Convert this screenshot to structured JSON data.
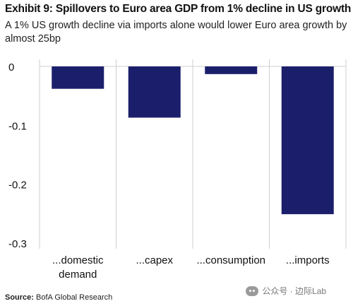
{
  "header": {
    "title": "Exhibit 9: Spillovers to Euro area GDP from 1% decline in US growth",
    "subtitle": "A 1% US growth decline via imports alone would lower Euro area growth by almost 25bp"
  },
  "footer": {
    "source_label": "Source:",
    "source_text": "BofA Global Research",
    "watermark": "公众号 · 边际Lab"
  },
  "colors": {
    "bar": "#1b1f6b",
    "axis": "#cfcfcf",
    "text": "#111111"
  },
  "chart_data": {
    "type": "bar",
    "categories": [
      [
        "...domestic",
        "demand"
      ],
      [
        "...capex"
      ],
      [
        "...consumption"
      ],
      [
        "...imports"
      ]
    ],
    "values": [
      -0.038,
      -0.087,
      -0.013,
      -0.251
    ],
    "yticks": [
      0,
      -0.1,
      -0.2,
      -0.3
    ],
    "ytick_labels": [
      "0",
      "-0.1",
      "-0.2",
      "-0.3"
    ],
    "ylim": [
      -0.3,
      0
    ],
    "title": "",
    "xlabel": "",
    "ylabel": "",
    "grid": false,
    "legend": "none"
  }
}
